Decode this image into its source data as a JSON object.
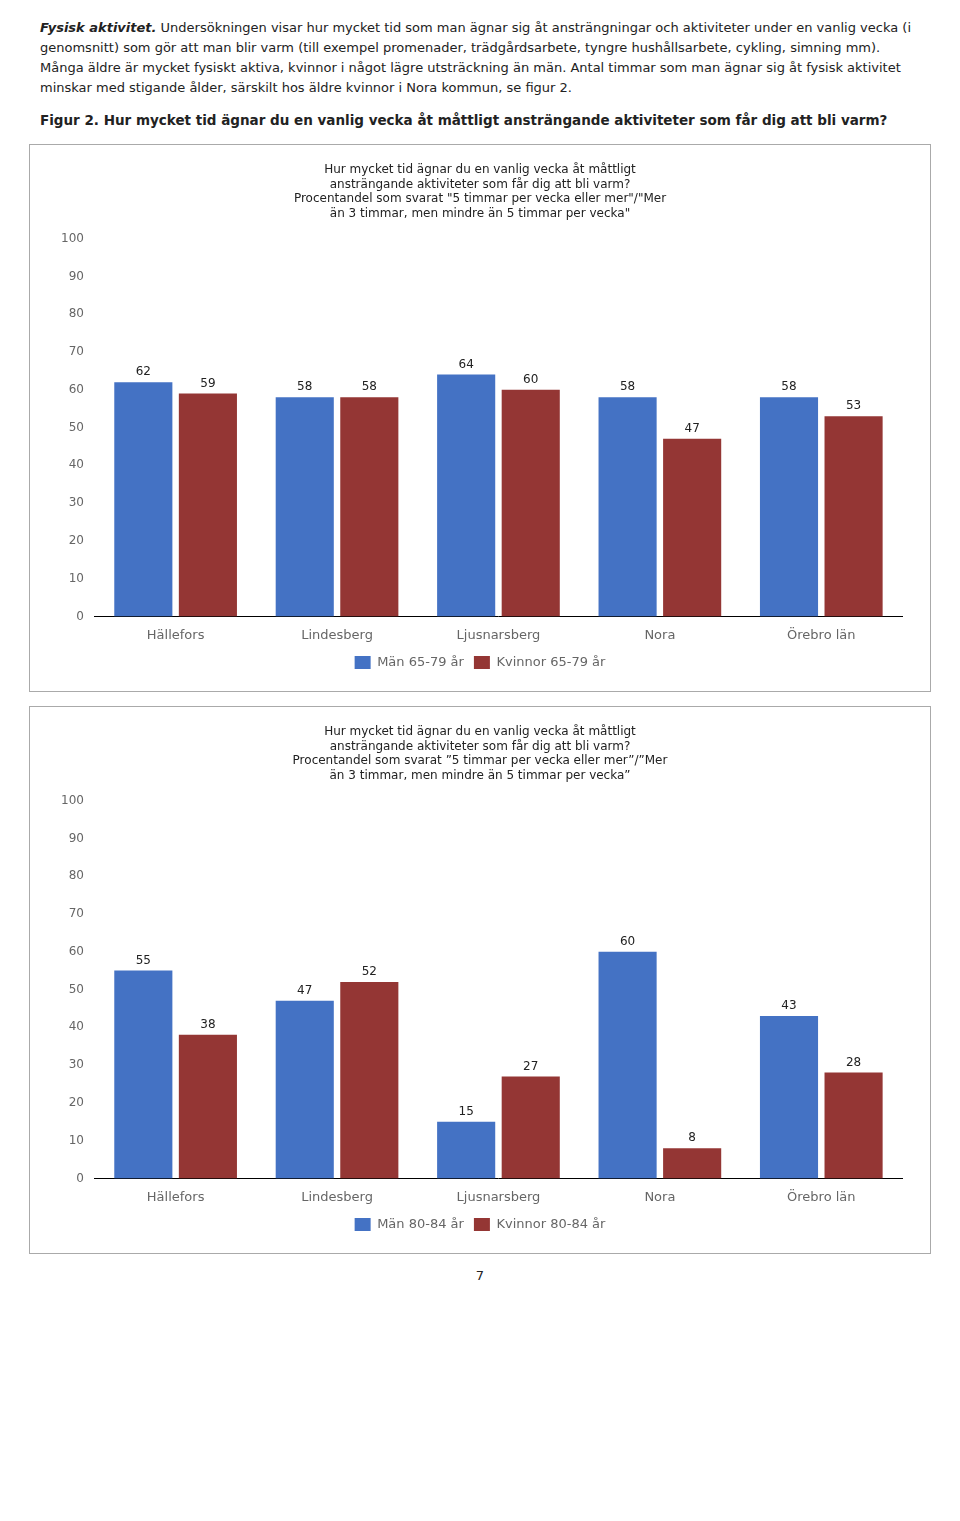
{
  "intro_italic": "Fysisk aktivitet.",
  "intro_text": " Undersökningen visar hur mycket tid som man ägnar sig åt ansträngningar och aktiviteter under en vanlig vecka (i genomsnitt) som gör att man blir varm (till exempel promenader, trädgårdsarbete, tyngre hushållsarbete, cykling, simning mm). Många äldre är mycket fysiskt aktiva, kvinnor i något lägre utsträckning än män. Antal timmar som man ägnar sig åt fysisk aktivitet minskar med stigande ålder, särskilt hos äldre kvinnor i Nora kommun, se figur 2.",
  "caption_bold": "Figur 2.",
  "caption_text": " Hur mycket tid ägnar du en vanlig vecka åt måttligt ansträngande aktiviteter som får dig att bli varm?",
  "page_number": "7",
  "chart_data": [
    {
      "type": "bar",
      "title": "Hur mycket tid ägnar du en vanlig vecka åt måttligt\nansträngande aktiviteter som får dig att bli varm?\nProcentandel som svarat \"5 timmar per vecka eller mer\"/\"Mer\nän 3 timmar, men mindre än 5 timmar per vecka\"",
      "categories": [
        "Hällefors",
        "Lindesberg",
        "Ljusnarsberg",
        "Nora",
        "Örebro län"
      ],
      "series": [
        {
          "name": "Män 65-79 år",
          "color": "#4472C4",
          "values": [
            62,
            58,
            64,
            58,
            58
          ]
        },
        {
          "name": "Kvinnor 65-79 år",
          "color": "#943634",
          "values": [
            59,
            58,
            60,
            47,
            53
          ]
        }
      ],
      "ylim": [
        0,
        100
      ],
      "yticks": [
        0,
        10,
        20,
        30,
        40,
        50,
        60,
        70,
        80,
        90,
        100
      ],
      "grid": false,
      "legend": "bottom",
      "data_labels": true
    },
    {
      "type": "bar",
      "title": "Hur mycket tid ägnar du en vanlig vecka åt måttligt\nansträngande aktiviteter som får dig att bli varm?\nProcentandel som svarat ”5 timmar per vecka eller mer”/”Mer\nän 3 timmar, men mindre än 5 timmar per vecka”",
      "categories": [
        "Hällefors",
        "Lindesberg",
        "Ljusnarsberg",
        "Nora",
        "Örebro län"
      ],
      "series": [
        {
          "name": "Män 80-84 år",
          "color": "#4472C4",
          "values": [
            55,
            47,
            15,
            60,
            43
          ]
        },
        {
          "name": "Kvinnor 80-84 år",
          "color": "#943634",
          "values": [
            38,
            52,
            27,
            8,
            28
          ]
        }
      ],
      "ylim": [
        0,
        100
      ],
      "yticks": [
        0,
        10,
        20,
        30,
        40,
        50,
        60,
        70,
        80,
        90,
        100
      ],
      "grid": false,
      "legend": "bottom",
      "data_labels": true
    }
  ]
}
